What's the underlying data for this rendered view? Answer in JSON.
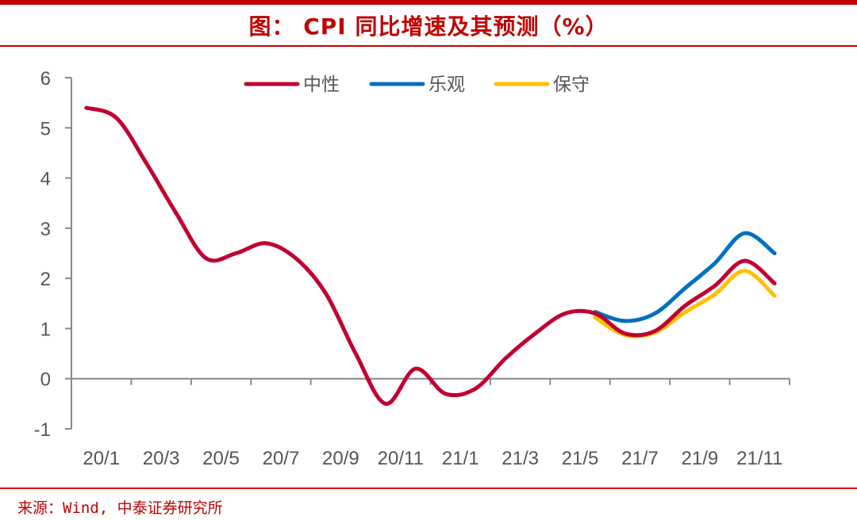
{
  "title": "图：  CPI 同比增速及其预测（%）",
  "source": "来源：Wind, 中泰证券研究所",
  "chart_data": {
    "type": "line",
    "title": "图：  CPI 同比增速及其预测（%）",
    "xlabel": "",
    "ylabel": "",
    "ylim": [
      -1,
      6
    ],
    "yticks": [
      "6",
      "5",
      "4",
      "3",
      "2",
      "1",
      "0",
      "-1"
    ],
    "ytick_values": [
      6,
      5,
      4,
      3,
      2,
      1,
      0,
      -1
    ],
    "xtick_labels": [
      "20/1",
      "20/3",
      "20/5",
      "20/7",
      "20/9",
      "20/11",
      "21/1",
      "21/3",
      "21/5",
      "21/7",
      "21/9",
      "21/11"
    ],
    "months": [
      "20/1",
      "20/2",
      "20/3",
      "20/4",
      "20/5",
      "20/6",
      "20/7",
      "20/8",
      "20/9",
      "20/10",
      "20/11",
      "20/12",
      "21/1",
      "21/2",
      "21/3",
      "21/4",
      "21/5",
      "21/6",
      "21/7",
      "21/8",
      "21/9",
      "21/10",
      "21/11",
      "21/12"
    ],
    "legend_position": "top-center",
    "grid": false,
    "series": [
      {
        "name": "中性",
        "color": "#c00030",
        "start_index": 0,
        "values": [
          5.4,
          5.2,
          4.3,
          3.3,
          2.4,
          2.5,
          2.7,
          2.4,
          1.7,
          0.5,
          -0.5,
          0.2,
          -0.3,
          -0.2,
          0.4,
          0.9,
          1.3,
          1.3,
          0.9,
          0.95,
          1.45,
          1.85,
          2.35,
          1.9
        ]
      },
      {
        "name": "乐观",
        "color": "#0070c0",
        "start_index": 17,
        "values": [
          1.33,
          1.15,
          1.3,
          1.8,
          2.3,
          2.9,
          2.5
        ]
      },
      {
        "name": "保守",
        "color": "#ffc000",
        "start_index": 17,
        "values": [
          1.22,
          0.87,
          0.92,
          1.32,
          1.68,
          2.15,
          1.65
        ]
      }
    ]
  }
}
